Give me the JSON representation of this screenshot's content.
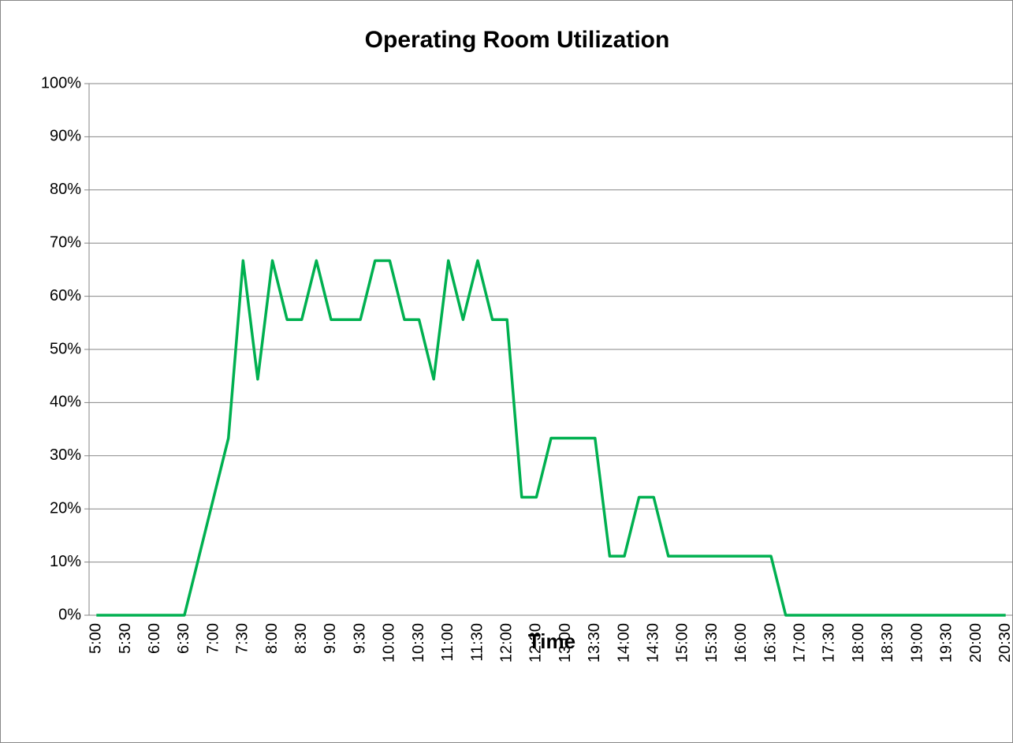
{
  "chart_data": {
    "type": "line",
    "title": "Operating Room Utilization",
    "x_label": "Time",
    "categories": [
      "5:00",
      null,
      "5:30",
      null,
      "6:00",
      null,
      "6:30",
      null,
      "7:00",
      null,
      "7:30",
      null,
      "8:00",
      null,
      "8:30",
      null,
      "9:00",
      null,
      "9:30",
      null,
      "10:00",
      null,
      "10:30",
      null,
      "11:00",
      null,
      "11:30",
      null,
      "12:00",
      null,
      "12:30",
      null,
      "13:00",
      null,
      "13:30",
      null,
      "14:00",
      null,
      "14:30",
      null,
      "15:00",
      null,
      "15:30",
      null,
      "16:00",
      null,
      "16:30",
      null,
      "17:00",
      null,
      "17:30",
      null,
      "18:00",
      null,
      "18:30",
      null,
      "19:00",
      null,
      "19:30",
      null,
      "20:00",
      null,
      "20:30"
    ],
    "series": [
      {
        "name": "Utilization",
        "color": "#00b050",
        "values": [
          0,
          0,
          0,
          0,
          0,
          0,
          0,
          11.1,
          22.2,
          33.3,
          66.7,
          44.4,
          66.7,
          55.6,
          55.6,
          66.7,
          55.6,
          55.6,
          55.6,
          66.7,
          66.7,
          55.6,
          55.6,
          44.4,
          66.7,
          55.6,
          66.7,
          55.6,
          55.6,
          22.2,
          22.2,
          33.3,
          33.3,
          33.3,
          33.3,
          11.1,
          11.1,
          22.2,
          22.2,
          11.1,
          11.1,
          11.1,
          11.1,
          11.1,
          11.1,
          11.1,
          11.1,
          0,
          0,
          0,
          0,
          0,
          0,
          0,
          0,
          0,
          0,
          0,
          0,
          0,
          0,
          0,
          0
        ]
      }
    ],
    "ylim": [
      0,
      100
    ],
    "yticks": [
      {
        "value": 0,
        "label": "0%"
      },
      {
        "value": 10,
        "label": "10%"
      },
      {
        "value": 20,
        "label": "20%"
      },
      {
        "value": 30,
        "label": "30%"
      },
      {
        "value": 40,
        "label": "40%"
      },
      {
        "value": 50,
        "label": "50%"
      },
      {
        "value": 60,
        "label": "60%"
      },
      {
        "value": 70,
        "label": "70%"
      },
      {
        "value": 80,
        "label": "80%"
      },
      {
        "value": 90,
        "label": "90%"
      },
      {
        "value": 100,
        "label": "100%"
      }
    ],
    "grid": true
  }
}
